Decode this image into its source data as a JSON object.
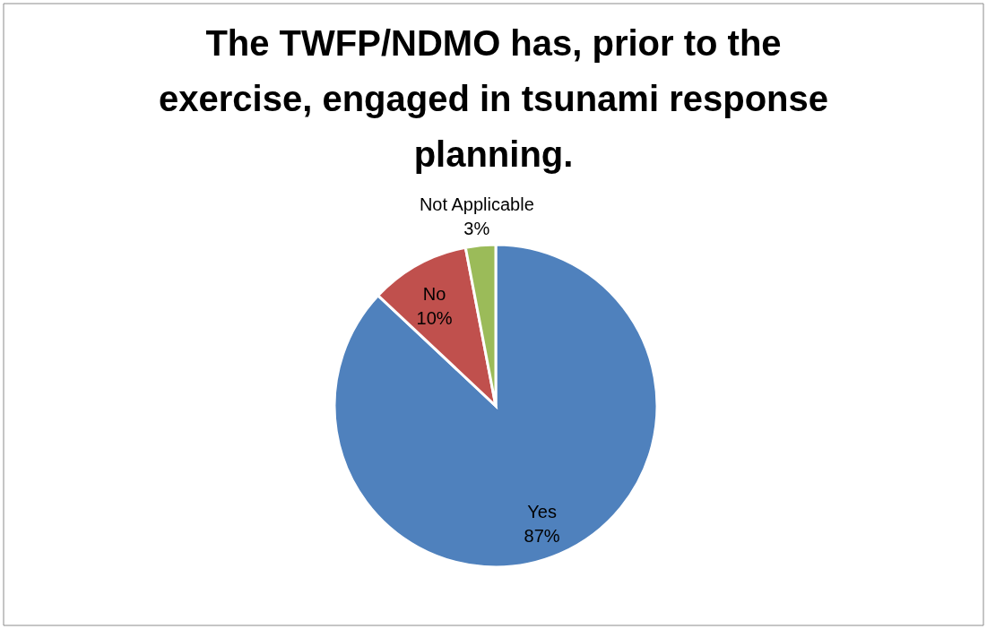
{
  "chart_data": {
    "type": "pie",
    "title": "The TWFP/NDMO has, prior to the exercise, engaged in tsunami response planning.",
    "categories": [
      "Yes",
      "No",
      "Not Applicable"
    ],
    "values": [
      87,
      10,
      3
    ],
    "colors": [
      "#4f81bd",
      "#c0504d",
      "#9bbb59"
    ],
    "value_labels": [
      "87%",
      "10%",
      "3%"
    ]
  }
}
